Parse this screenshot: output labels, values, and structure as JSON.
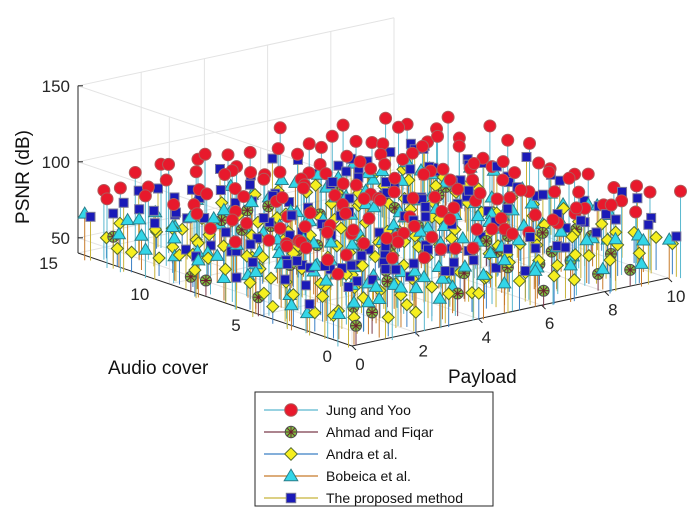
{
  "chart_data": {
    "type": "scatter",
    "title": "",
    "xlabel": "Payload",
    "ylabel": "Audio cover",
    "zlabel": "PSNR (dB)",
    "x_ticks": [
      "0",
      "2",
      "4",
      "6",
      "8",
      "10"
    ],
    "y_ticks": [
      "0",
      "5",
      "10",
      "15"
    ],
    "z_ticks": [
      "50",
      "100",
      "150"
    ],
    "xlim": [
      0,
      10
    ],
    "ylim": [
      0,
      15
    ],
    "zlim": [
      40,
      150
    ],
    "grid": true,
    "legend_position": "bottom",
    "colors": {
      "jung_yoo": "#e8192c",
      "ahmad_fiqar": "#7cc242",
      "andra": "#f6ef1f",
      "bobeica": "#33d6e8",
      "proposed": "#1a1ab8"
    },
    "series": [
      {
        "key": "jung_yoo",
        "name": "Jung and Yoo",
        "marker": "circle",
        "z_mean": 91,
        "z_spread": 8
      },
      {
        "key": "ahmad_fiqar",
        "name": "Ahmad and Fiqar",
        "marker": "asterisk",
        "z_mean": 54,
        "z_spread": 4
      },
      {
        "key": "andra",
        "name": "Andra et al.",
        "marker": "diamond",
        "z_mean": 57,
        "z_spread": 6
      },
      {
        "key": "bobeica",
        "name": "Bobeica et al.",
        "marker": "triangle",
        "z_mean": 62,
        "z_spread": 9
      },
      {
        "key": "proposed",
        "name": "The proposed method",
        "marker": "square",
        "z_mean": 74,
        "z_spread": 14
      }
    ]
  }
}
